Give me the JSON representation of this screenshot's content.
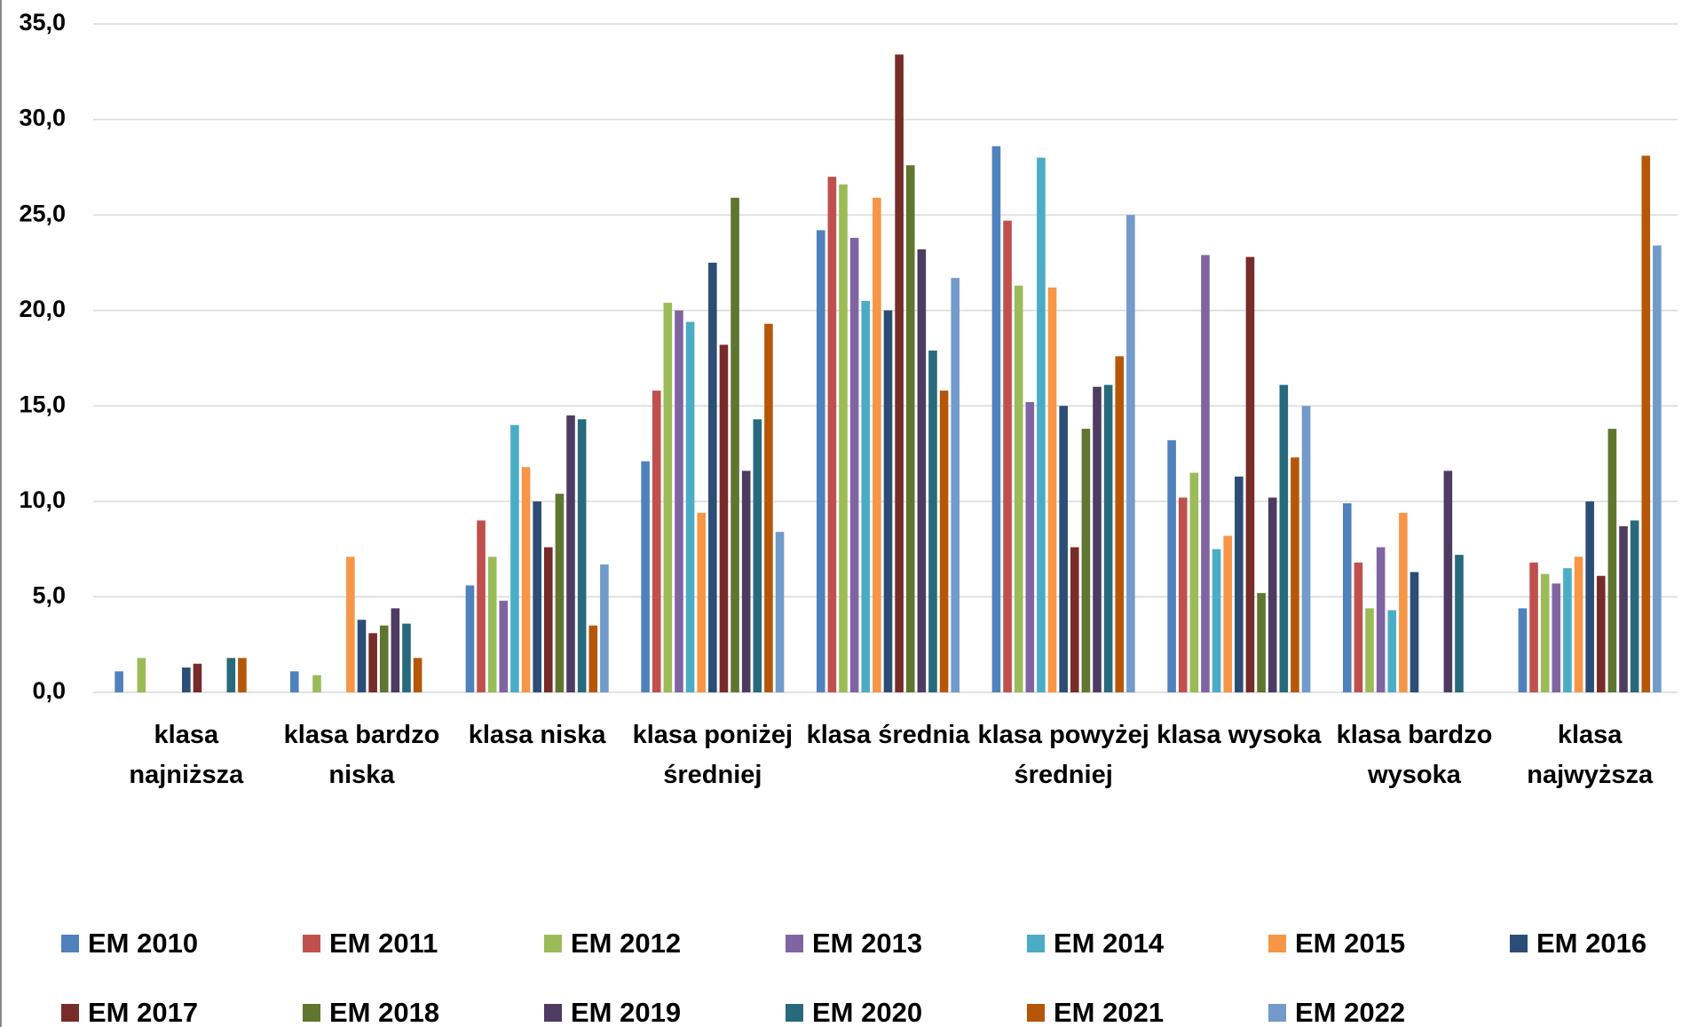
{
  "chart_data": {
    "type": "bar",
    "categories": [
      "klasa najniższa",
      "klasa bardzo niska",
      "klasa niska",
      "klasa poniżej średniej",
      "klasa średnia",
      "klasa powyżej średniej",
      "klasa wysoka",
      "klasa bardzo wysoka",
      "klasa najwyższa"
    ],
    "ylim": [
      0,
      35
    ],
    "yticks": [
      {
        "value": 0,
        "label": "0,0"
      },
      {
        "value": 5,
        "label": "5,0"
      },
      {
        "value": 10,
        "label": "10,0"
      },
      {
        "value": 15,
        "label": "15,0"
      },
      {
        "value": 20,
        "label": "20,0"
      },
      {
        "value": 25,
        "label": "25,0"
      },
      {
        "value": 30,
        "label": "30,0"
      },
      {
        "value": 35,
        "label": "35,0"
      }
    ],
    "grid": true,
    "legend": "bottom",
    "series": [
      {
        "name": "EM 2010",
        "color": "#4f81bd",
        "values": [
          1.1,
          1.1,
          5.6,
          12.1,
          24.2,
          28.6,
          13.2,
          9.9,
          4.4
        ]
      },
      {
        "name": "EM 2011",
        "color": "#c0504d",
        "values": [
          null,
          null,
          9.0,
          15.8,
          27.0,
          24.7,
          10.2,
          6.8,
          6.8
        ]
      },
      {
        "name": "EM 2012",
        "color": "#9bbb59",
        "values": [
          1.8,
          0.9,
          7.1,
          20.4,
          26.6,
          21.3,
          11.5,
          4.4,
          6.2
        ]
      },
      {
        "name": "EM 2013",
        "color": "#8064a2",
        "values": [
          null,
          null,
          4.8,
          20.0,
          23.8,
          15.2,
          22.9,
          7.6,
          5.7
        ]
      },
      {
        "name": "EM 2014",
        "color": "#4bacc6",
        "values": [
          null,
          null,
          14.0,
          19.4,
          20.5,
          28.0,
          7.5,
          4.3,
          6.5
        ]
      },
      {
        "name": "EM 2015",
        "color": "#f79646",
        "values": [
          null,
          7.1,
          11.8,
          9.4,
          25.9,
          21.2,
          8.2,
          9.4,
          7.1
        ]
      },
      {
        "name": "EM 2016",
        "color": "#2c4d75",
        "values": [
          1.3,
          3.8,
          10.0,
          22.5,
          20.0,
          15.0,
          11.3,
          6.3,
          10.0
        ]
      },
      {
        "name": "EM 2017",
        "color": "#772c2a",
        "values": [
          1.5,
          3.1,
          7.6,
          18.2,
          33.4,
          7.6,
          22.8,
          null,
          6.1
        ]
      },
      {
        "name": "EM 2018",
        "color": "#5f7530",
        "values": [
          null,
          3.5,
          10.4,
          25.9,
          27.6,
          13.8,
          5.2,
          null,
          13.8
        ]
      },
      {
        "name": "EM 2019",
        "color": "#4d3b62",
        "values": [
          null,
          4.4,
          14.5,
          11.6,
          23.2,
          16.0,
          10.2,
          11.6,
          8.7
        ]
      },
      {
        "name": "EM 2020",
        "color": "#276a7c",
        "values": [
          1.8,
          3.6,
          14.3,
          14.3,
          17.9,
          16.1,
          16.1,
          7.2,
          9.0
        ]
      },
      {
        "name": "EM 2021",
        "color": "#b65708",
        "values": [
          1.8,
          1.8,
          3.5,
          19.3,
          15.8,
          17.6,
          12.3,
          null,
          28.1
        ]
      },
      {
        "name": "EM 2022",
        "color": "#729aca",
        "values": [
          null,
          null,
          6.7,
          8.4,
          21.7,
          25.0,
          15.0,
          null,
          23.4
        ]
      }
    ]
  }
}
